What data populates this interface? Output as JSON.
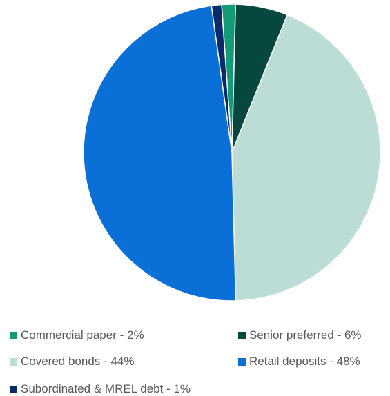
{
  "chart_data": {
    "type": "pie",
    "title": "",
    "start_angle_deg": -4,
    "direction": "clockwise",
    "legend_position": "bottom",
    "slices": [
      {
        "label": "Commercial paper - 2%",
        "value": 1.5,
        "color": "#129b76"
      },
      {
        "label": "Senior preferred - 6%",
        "value": 5.7,
        "color": "#06473e"
      },
      {
        "label": "Covered bonds - 44%",
        "value": 43.5,
        "color": "#bcddd6"
      },
      {
        "label": "Retail deposits - 48%",
        "value": 48.2,
        "color": "#0a6fd6"
      },
      {
        "label": "Subordinated & MREL debt - 1%",
        "value": 1.1,
        "color": "#0b2a6b"
      }
    ]
  }
}
